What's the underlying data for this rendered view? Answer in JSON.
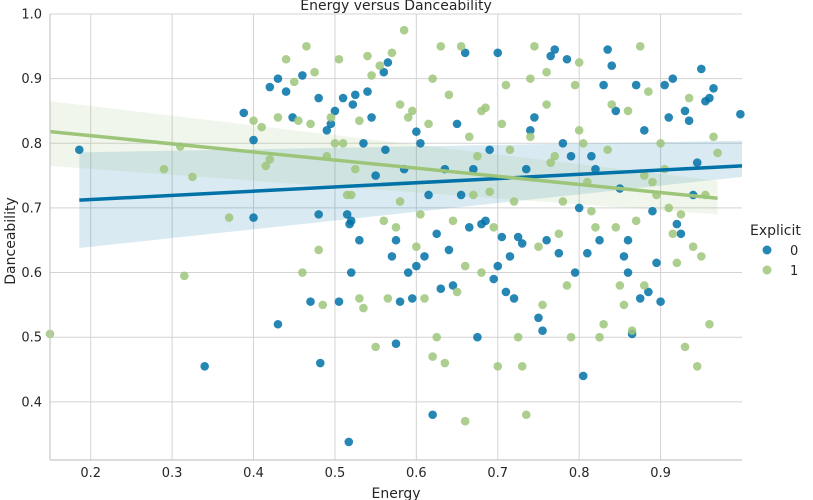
{
  "chart_data": {
    "type": "scatter",
    "title": "Energy versus Danceability",
    "xlabel": "Energy",
    "ylabel": "Danceability",
    "xlim": [
      0.15,
      1.0
    ],
    "ylim": [
      0.31,
      1.0
    ],
    "xticks": [
      "0.2",
      "0.3",
      "0.4",
      "0.5",
      "0.6",
      "0.7",
      "0.8",
      "0.9"
    ],
    "yticks": [
      "0.4",
      "0.5",
      "0.6",
      "0.7",
      "0.8",
      "0.9",
      "1.0"
    ],
    "grid": true,
    "legend": {
      "title": "Explicit",
      "placement": "right"
    },
    "colors": {
      "0": "#0072a8",
      "1": "#9dc57a",
      "grid": "#d3d3d3",
      "axis": "#c8c8c8"
    },
    "series": [
      {
        "name": "0",
        "regression": {
          "x": [
            0.186,
            1.0
          ],
          "y": [
            0.712,
            0.765
          ],
          "ci_low": [
            0.638,
            0.748
          ],
          "ci_high": [
            0.786,
            0.804
          ]
        },
        "points": [
          [
            0.186,
            0.79
          ],
          [
            0.34,
            0.455
          ],
          [
            0.388,
            0.847
          ],
          [
            0.4,
            0.805
          ],
          [
            0.4,
            0.685
          ],
          [
            0.42,
            0.887
          ],
          [
            0.43,
            0.52
          ],
          [
            0.43,
            0.9
          ],
          [
            0.44,
            0.88
          ],
          [
            0.448,
            0.84
          ],
          [
            0.46,
            0.905
          ],
          [
            0.47,
            0.555
          ],
          [
            0.48,
            0.87
          ],
          [
            0.48,
            0.69
          ],
          [
            0.482,
            0.46
          ],
          [
            0.49,
            0.82
          ],
          [
            0.495,
            0.83
          ],
          [
            0.5,
            0.85
          ],
          [
            0.505,
            0.555
          ],
          [
            0.51,
            0.87
          ],
          [
            0.515,
            0.69
          ],
          [
            0.517,
            0.338
          ],
          [
            0.518,
            0.675
          ],
          [
            0.52,
            0.68
          ],
          [
            0.522,
            0.86
          ],
          [
            0.525,
            0.875
          ],
          [
            0.53,
            0.65
          ],
          [
            0.535,
            0.8
          ],
          [
            0.54,
            0.88
          ],
          [
            0.545,
            0.84
          ],
          [
            0.55,
            0.75
          ],
          [
            0.56,
            0.91
          ],
          [
            0.562,
            0.79
          ],
          [
            0.565,
            0.925
          ],
          [
            0.57,
            0.625
          ],
          [
            0.575,
            0.65
          ],
          [
            0.575,
            0.49
          ],
          [
            0.58,
            0.555
          ],
          [
            0.585,
            0.76
          ],
          [
            0.59,
            0.6
          ],
          [
            0.595,
            0.56
          ],
          [
            0.6,
            0.818
          ],
          [
            0.605,
            0.8
          ],
          [
            0.61,
            0.625
          ],
          [
            0.615,
            0.72
          ],
          [
            0.62,
            0.38
          ],
          [
            0.625,
            0.66
          ],
          [
            0.63,
            0.575
          ],
          [
            0.635,
            0.76
          ],
          [
            0.64,
            0.635
          ],
          [
            0.645,
            0.58
          ],
          [
            0.65,
            0.83
          ],
          [
            0.655,
            0.72
          ],
          [
            0.66,
            0.94
          ],
          [
            0.665,
            0.67
          ],
          [
            0.67,
            0.76
          ],
          [
            0.675,
            0.5
          ],
          [
            0.68,
            0.675
          ],
          [
            0.685,
            0.68
          ],
          [
            0.69,
            0.79
          ],
          [
            0.695,
            0.59
          ],
          [
            0.7,
            0.94
          ],
          [
            0.7,
            0.61
          ],
          [
            0.705,
            0.655
          ],
          [
            0.71,
            0.57
          ],
          [
            0.715,
            0.625
          ],
          [
            0.72,
            0.56
          ],
          [
            0.725,
            0.655
          ],
          [
            0.73,
            0.645
          ],
          [
            0.735,
            0.76
          ],
          [
            0.74,
            0.82
          ],
          [
            0.745,
            0.84
          ],
          [
            0.75,
            0.53
          ],
          [
            0.755,
            0.51
          ],
          [
            0.76,
            0.65
          ],
          [
            0.765,
            0.935
          ],
          [
            0.77,
            0.945
          ],
          [
            0.775,
            0.63
          ],
          [
            0.78,
            0.8
          ],
          [
            0.785,
            0.93
          ],
          [
            0.79,
            0.78
          ],
          [
            0.795,
            0.6
          ],
          [
            0.8,
            0.7
          ],
          [
            0.805,
            0.44
          ],
          [
            0.81,
            0.63
          ],
          [
            0.815,
            0.78
          ],
          [
            0.82,
            0.76
          ],
          [
            0.825,
            0.65
          ],
          [
            0.83,
            0.89
          ],
          [
            0.835,
            0.945
          ],
          [
            0.84,
            0.92
          ],
          [
            0.845,
            0.85
          ],
          [
            0.85,
            0.73
          ],
          [
            0.855,
            0.625
          ],
          [
            0.86,
            0.6
          ],
          [
            0.865,
            0.505
          ],
          [
            0.87,
            0.89
          ],
          [
            0.875,
            0.56
          ],
          [
            0.88,
            0.82
          ],
          [
            0.885,
            0.57
          ],
          [
            0.89,
            0.695
          ],
          [
            0.895,
            0.615
          ],
          [
            0.9,
            0.555
          ],
          [
            0.905,
            0.89
          ],
          [
            0.91,
            0.84
          ],
          [
            0.915,
            0.9
          ],
          [
            0.92,
            0.675
          ],
          [
            0.925,
            0.66
          ],
          [
            0.93,
            0.85
          ],
          [
            0.935,
            0.835
          ],
          [
            0.94,
            0.72
          ],
          [
            0.945,
            0.77
          ],
          [
            0.95,
            0.915
          ],
          [
            0.955,
            0.865
          ],
          [
            0.96,
            0.87
          ],
          [
            0.965,
            0.885
          ],
          [
            0.998,
            0.845
          ],
          [
            0.52,
            0.6
          ],
          [
            0.6,
            0.61
          ],
          [
            0.86,
            0.65
          ]
        ]
      },
      {
        "name": "1",
        "regression": {
          "x": [
            0.15,
            0.97
          ],
          "y": [
            0.818,
            0.715
          ],
          "ci_low": [
            0.765,
            0.69
          ],
          "ci_high": [
            0.865,
            0.742
          ]
        },
        "points": [
          [
            0.15,
            0.505
          ],
          [
            0.29,
            0.76
          ],
          [
            0.31,
            0.795
          ],
          [
            0.315,
            0.595
          ],
          [
            0.325,
            0.748
          ],
          [
            0.37,
            0.685
          ],
          [
            0.4,
            0.835
          ],
          [
            0.41,
            0.825
          ],
          [
            0.415,
            0.765
          ],
          [
            0.42,
            0.775
          ],
          [
            0.43,
            0.84
          ],
          [
            0.44,
            0.93
          ],
          [
            0.45,
            0.895
          ],
          [
            0.455,
            0.835
          ],
          [
            0.46,
            0.6
          ],
          [
            0.465,
            0.95
          ],
          [
            0.47,
            0.83
          ],
          [
            0.475,
            0.91
          ],
          [
            0.48,
            0.635
          ],
          [
            0.485,
            0.55
          ],
          [
            0.49,
            0.78
          ],
          [
            0.495,
            0.84
          ],
          [
            0.5,
            0.8
          ],
          [
            0.505,
            0.93
          ],
          [
            0.51,
            0.8
          ],
          [
            0.515,
            0.72
          ],
          [
            0.52,
            0.72
          ],
          [
            0.525,
            0.76
          ],
          [
            0.53,
            0.56
          ],
          [
            0.535,
            0.545
          ],
          [
            0.54,
            0.935
          ],
          [
            0.545,
            0.905
          ],
          [
            0.55,
            0.485
          ],
          [
            0.555,
            0.92
          ],
          [
            0.56,
            0.68
          ],
          [
            0.565,
            0.56
          ],
          [
            0.57,
            0.94
          ],
          [
            0.575,
            0.67
          ],
          [
            0.58,
            0.86
          ],
          [
            0.585,
            0.975
          ],
          [
            0.59,
            0.84
          ],
          [
            0.595,
            0.85
          ],
          [
            0.6,
            0.64
          ],
          [
            0.605,
            0.69
          ],
          [
            0.61,
            0.56
          ],
          [
            0.615,
            0.83
          ],
          [
            0.62,
            0.9
          ],
          [
            0.625,
            0.5
          ],
          [
            0.63,
            0.95
          ],
          [
            0.635,
            0.46
          ],
          [
            0.64,
            0.875
          ],
          [
            0.645,
            0.68
          ],
          [
            0.65,
            0.57
          ],
          [
            0.655,
            0.95
          ],
          [
            0.66,
            0.61
          ],
          [
            0.665,
            0.81
          ],
          [
            0.67,
            0.72
          ],
          [
            0.675,
            0.78
          ],
          [
            0.68,
            0.6
          ],
          [
            0.685,
            0.855
          ],
          [
            0.69,
            0.725
          ],
          [
            0.695,
            0.67
          ],
          [
            0.7,
            0.455
          ],
          [
            0.705,
            0.83
          ],
          [
            0.71,
            0.89
          ],
          [
            0.715,
            0.79
          ],
          [
            0.72,
            0.71
          ],
          [
            0.725,
            0.5
          ],
          [
            0.73,
            0.455
          ],
          [
            0.735,
            0.38
          ],
          [
            0.74,
            0.9
          ],
          [
            0.745,
            0.95
          ],
          [
            0.75,
            0.64
          ],
          [
            0.755,
            0.55
          ],
          [
            0.76,
            0.91
          ],
          [
            0.765,
            0.77
          ],
          [
            0.77,
            0.78
          ],
          [
            0.775,
            0.66
          ],
          [
            0.78,
            0.71
          ],
          [
            0.785,
            0.58
          ],
          [
            0.79,
            0.5
          ],
          [
            0.795,
            0.89
          ],
          [
            0.8,
            0.925
          ],
          [
            0.805,
            0.8
          ],
          [
            0.81,
            0.74
          ],
          [
            0.815,
            0.695
          ],
          [
            0.82,
            0.67
          ],
          [
            0.825,
            0.5
          ],
          [
            0.83,
            0.52
          ],
          [
            0.835,
            0.79
          ],
          [
            0.84,
            0.86
          ],
          [
            0.845,
            0.67
          ],
          [
            0.85,
            0.58
          ],
          [
            0.855,
            0.55
          ],
          [
            0.86,
            0.85
          ],
          [
            0.865,
            0.51
          ],
          [
            0.87,
            0.68
          ],
          [
            0.875,
            0.95
          ],
          [
            0.88,
            0.58
          ],
          [
            0.885,
            0.88
          ],
          [
            0.89,
            0.74
          ],
          [
            0.895,
            0.72
          ],
          [
            0.9,
            0.8
          ],
          [
            0.905,
            0.76
          ],
          [
            0.91,
            0.7
          ],
          [
            0.915,
            0.66
          ],
          [
            0.92,
            0.615
          ],
          [
            0.925,
            0.69
          ],
          [
            0.93,
            0.485
          ],
          [
            0.935,
            0.87
          ],
          [
            0.94,
            0.64
          ],
          [
            0.945,
            0.455
          ],
          [
            0.95,
            0.625
          ],
          [
            0.955,
            0.72
          ],
          [
            0.96,
            0.52
          ],
          [
            0.965,
            0.81
          ],
          [
            0.97,
            0.785
          ],
          [
            0.62,
            0.47
          ],
          [
            0.66,
            0.37
          ],
          [
            0.74,
            0.81
          ],
          [
            0.53,
            0.835
          ],
          [
            0.58,
            0.71
          ],
          [
            0.68,
            0.85
          ],
          [
            0.76,
            0.86
          ],
          [
            0.8,
            0.82
          ],
          [
            0.88,
            0.75
          ]
        ]
      }
    ]
  }
}
